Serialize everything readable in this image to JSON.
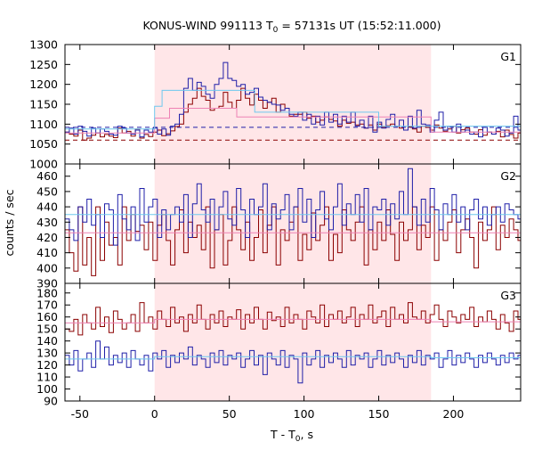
{
  "colors": {
    "red": "#8b0000",
    "blue": "#1f1fa8",
    "light_red": "#ee82b4",
    "light_blue": "#6ec8ee",
    "shade": "#ffe6e8"
  },
  "chart_data": {
    "type": "line",
    "title": {
      "main": "KONUS-WIND 991113 T",
      "sub": "0",
      "rest": " = 57131s UT (15:52:11.000)"
    },
    "xlabel": {
      "main": "T - T",
      "sub": "0",
      "rest": ", s"
    },
    "ylabel": "counts / sec",
    "xlim": [
      -60,
      245
    ],
    "xticks": [
      -50,
      0,
      50,
      100,
      150,
      200
    ],
    "shaded_interval": [
      0,
      185
    ],
    "panels": [
      {
        "label": "G1",
        "ylim": [
          1000,
          1300
        ],
        "yticks": [
          1000,
          1050,
          1100,
          1150,
          1200,
          1250,
          1300
        ],
        "series": [
          {
            "color": "red",
            "bin": 2.944,
            "x_start": -60,
            "values": [
              1080,
              1075,
              1070,
              1085,
              1060,
              1065,
              1072,
              1078,
              1068,
              1074,
              1070,
              1066,
              1090,
              1078,
              1082,
              1070,
              1088,
              1065,
              1074,
              1069,
              1080,
              1085,
              1071,
              1076,
              1083,
              1094,
              1100,
              1130,
              1150,
              1165,
              1190,
              1170,
              1160,
              1135,
              1140,
              1145,
              1180,
              1155,
              1140,
              1160,
              1190,
              1165,
              1148,
              1175,
              1160,
              1140,
              1155,
              1165,
              1130,
              1150,
              1140,
              1120,
              1125,
              1125,
              1130,
              1115,
              1120,
              1105,
              1110,
              1118,
              1112,
              1108,
              1095,
              1110,
              1102,
              1105,
              1098,
              1100,
              1090,
              1098,
              1085,
              1100,
              1092,
              1096,
              1100,
              1095,
              1090,
              1085,
              1093,
              1088,
              1080,
              1095,
              1092,
              1085,
              1098,
              1090,
              1082,
              1088,
              1095,
              1078,
              1086,
              1090,
              1080,
              1075,
              1086,
              1072,
              1080,
              1075,
              1082,
              1068,
              1085,
              1074,
              1065,
              1078
            ]
          },
          {
            "color": "blue",
            "bin": 2.944,
            "x_start": -60,
            "values": [
              1080,
              1090,
              1075,
              1095,
              1082,
              1070,
              1090,
              1078,
              1088,
              1082,
              1075,
              1072,
              1095,
              1090,
              1078,
              1075,
              1085,
              1068,
              1085,
              1080,
              1090,
              1075,
              1088,
              1072,
              1095,
              1100,
              1125,
              1190,
              1215,
              1185,
              1205,
              1195,
              1175,
              1165,
              1200,
              1215,
              1255,
              1215,
              1210,
              1195,
              1200,
              1175,
              1180,
              1190,
              1168,
              1160,
              1155,
              1150,
              1148,
              1135,
              1140,
              1125,
              1120,
              1130,
              1110,
              1125,
              1100,
              1120,
              1098,
              1130,
              1105,
              1125,
              1100,
              1120,
              1105,
              1130,
              1095,
              1110,
              1090,
              1120,
              1080,
              1105,
              1090,
              1112,
              1125,
              1095,
              1110,
              1085,
              1120,
              1090,
              1135,
              1100,
              1098,
              1080,
              1110,
              1130,
              1085,
              1095,
              1080,
              1100,
              1080,
              1085,
              1075,
              1080,
              1068,
              1092,
              1080,
              1075,
              1090,
              1085,
              1070,
              1078,
              1120,
              1085
            ]
          }
        ],
        "fits": [
          {
            "color": "light_red",
            "values": [
              [
                -60,
                1078
              ],
              [
                0,
                1078
              ],
              [
                0,
                1115
              ],
              [
                10,
                1115
              ],
              [
                10,
                1140
              ],
              [
                55,
                1140
              ],
              [
                55,
                1118
              ],
              [
                185,
                1118
              ],
              [
                185,
                1080
              ],
              [
                245,
                1080
              ]
            ]
          },
          {
            "color": "light_blue",
            "values": [
              [
                -60,
                1088
              ],
              [
                0,
                1088
              ],
              [
                0,
                1145
              ],
              [
                5,
                1145
              ],
              [
                5,
                1185
              ],
              [
                67,
                1185
              ],
              [
                67,
                1130
              ],
              [
                150,
                1130
              ],
              [
                150,
                1095
              ],
              [
                245,
                1095
              ]
            ]
          }
        ],
        "bg_lines": [
          {
            "color": "blue",
            "y": 1092,
            "dash": true
          },
          {
            "color": "red",
            "y": 1060,
            "dash": true
          }
        ]
      },
      {
        "label": "G2",
        "ylim": [
          390,
          468
        ],
        "yticks": [
          390,
          400,
          410,
          420,
          430,
          440,
          450,
          460
        ],
        "series": [
          {
            "color": "red",
            "bin": 2.944,
            "x_start": -60,
            "values": [
              425,
              410,
              398,
              440,
              402,
              420,
              395,
              440,
              405,
              430,
              415,
              420,
              402,
              440,
              418,
              435,
              424,
              428,
              412,
              430,
              405,
              428,
              435,
              418,
              402,
              425,
              438,
              410,
              430,
              420,
              428,
              412,
              440,
              400,
              425,
              435,
              402,
              418,
              440,
              425,
              412,
              430,
              405,
              420,
              438,
              410,
              428,
              440,
              402,
              425,
              418,
              430,
              440,
              405,
              422,
              412,
              436,
              418,
              428,
              440,
              405,
              422,
              410,
              438,
              425,
              418,
              430,
              440,
              402,
              425,
              412,
              430,
              418,
              438,
              422,
              405,
              430,
              418,
              425,
              440,
              412,
              428,
              420,
              440,
              405,
              425,
              418,
              430,
              438,
              410,
              425,
              432,
              420,
              400,
              430,
              418,
              425,
              440,
              412,
              428,
              420,
              432,
              425,
              418
            ]
          },
          {
            "color": "blue",
            "bin": 2.944,
            "x_start": -60,
            "values": [
              432,
              425,
              418,
              440,
              430,
              445,
              428,
              435,
              420,
              442,
              438,
              415,
              448,
              432,
              425,
              440,
              418,
              452,
              430,
              440,
              445,
              420,
              438,
              425,
              435,
              440,
              430,
              448,
              420,
              442,
              455,
              438,
              430,
              445,
              425,
              440,
              450,
              432,
              428,
              452,
              438,
              420,
              445,
              435,
              440,
              455,
              425,
              442,
              432,
              438,
              448,
              425,
              440,
              452,
              430,
              445,
              420,
              438,
              450,
              432,
              425,
              440,
              455,
              428,
              442,
              435,
              448,
              430,
              452,
              425,
              440,
              438,
              445,
              428,
              442,
              432,
              450,
              435,
              465,
              440,
              428,
              445,
              430,
              452,
              438,
              425,
              442,
              435,
              448,
              430,
              440,
              425,
              438,
              445,
              432,
              440,
              428,
              435,
              440,
              430,
              442,
              438,
              435,
              432
            ]
          }
        ],
        "fits": [
          {
            "color": "light_red",
            "values": [
              [
                -60,
                423
              ],
              [
                245,
                423
              ]
            ]
          },
          {
            "color": "light_blue",
            "values": [
              [
                -60,
                435
              ],
              [
                245,
                435
              ]
            ]
          }
        ],
        "bg_lines": []
      },
      {
        "label": "G3",
        "ylim": [
          90,
          188
        ],
        "yticks": [
          90,
          100,
          110,
          120,
          130,
          140,
          150,
          160,
          170,
          180
        ],
        "series": [
          {
            "color": "red",
            "bin": 2.944,
            "x_start": -60,
            "values": [
              150,
              148,
              158,
              145,
              162,
              155,
              150,
              168,
              152,
              160,
              147,
              165,
              158,
              150,
              155,
              162,
              148,
              172,
              155,
              160,
              150,
              165,
              158,
              152,
              168,
              155,
              160,
              148,
              162,
              155,
              170,
              158,
              150,
              162,
              155,
              165,
              152,
              160,
              158,
              166,
              150,
              162,
              155,
              168,
              158,
              150,
              164,
              157,
              160,
              152,
              168,
              155,
              162,
              158,
              150,
              165,
              160,
              155,
              170,
              152,
              162,
              158,
              165,
              155,
              160,
              168,
              152,
              162,
              158,
              170,
              155,
              160,
              165,
              152,
              168,
              158,
              162,
              155,
              172,
              160,
              158,
              165,
              155,
              162,
              170,
              158,
              152,
              165,
              160,
              155,
              162,
              158,
              168,
              152,
              160,
              156,
              165,
              158,
              150,
              162,
              155,
              148,
              165,
              158
            ]
          },
          {
            "color": "blue",
            "bin": 2.944,
            "x_start": -60,
            "values": [
              128,
              120,
              132,
              115,
              125,
              130,
              118,
              140,
              125,
              135,
              120,
              128,
              122,
              130,
              118,
              132,
              125,
              120,
              128,
              115,
              130,
              125,
              132,
              118,
              128,
              122,
              130,
              125,
              135,
              120,
              128,
              125,
              118,
              130,
              122,
              132,
              120,
              128,
              125,
              130,
              118,
              125,
              132,
              120,
              128,
              112,
              130,
              125,
              120,
              132,
              118,
              128,
              125,
              105,
              130,
              120,
              125,
              132,
              118,
              128,
              122,
              130,
              125,
              118,
              132,
              120,
              128,
              125,
              130,
              118,
              125,
              132,
              120,
              128,
              122,
              130,
              125,
              118,
              128,
              122,
              132,
              120,
              128,
              125,
              130,
              118,
              125,
              132,
              120,
              128,
              122,
              130,
              125,
              118,
              128,
              122,
              130,
              125,
              120,
              128,
              122,
              130,
              125,
              128
            ]
          }
        ],
        "fits": [
          {
            "color": "light_red",
            "values": [
              [
                -60,
                155
              ],
              [
                0,
                155
              ],
              [
                0,
                158
              ],
              [
                185,
                158
              ],
              [
                185,
                156
              ],
              [
                245,
                156
              ]
            ]
          },
          {
            "color": "light_blue",
            "values": [
              [
                -60,
                125
              ],
              [
                0,
                125
              ],
              [
                0,
                127
              ],
              [
                185,
                127
              ],
              [
                185,
                126
              ],
              [
                245,
                126
              ]
            ]
          }
        ],
        "bg_lines": []
      }
    ]
  }
}
